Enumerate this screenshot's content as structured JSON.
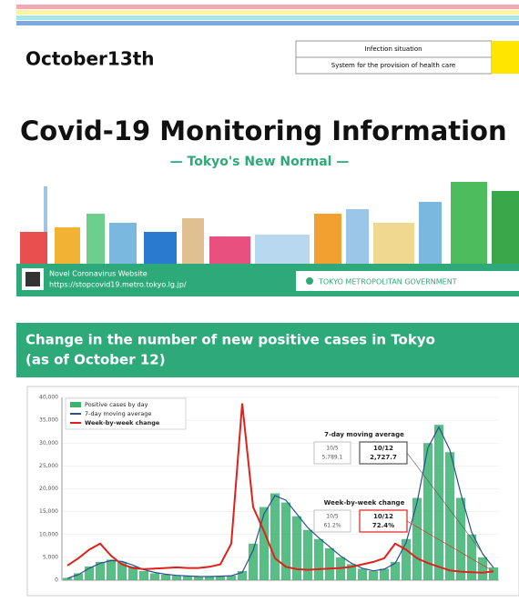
{
  "header": {
    "date": "October13th",
    "status_rows": [
      "Infection situation",
      "System for the provision of health care"
    ]
  },
  "banner": {
    "title": "Covid-19 Monitoring Information",
    "subtitle": "— Tokyo's New Normal —",
    "website_label": "Novel Coronavirus Website",
    "website_url": "https://stopcovid19.metro.tokyo.lg.jp/",
    "organization": "TOKYO METROPOLITAN GOVERNMENT"
  },
  "section": {
    "heading_lines": [
      "Change in the number of new positive cases in Tokyo",
      "(as of October 12)"
    ]
  },
  "chart_data": {
    "type": "combo",
    "categories": [
      null,
      null,
      null,
      null,
      null,
      null,
      null,
      null,
      null,
      null,
      null,
      null,
      null,
      null,
      null,
      null,
      null,
      null,
      null,
      null,
      null,
      null,
      null,
      null,
      null,
      null,
      null,
      null,
      null,
      null,
      null,
      null,
      null,
      null,
      null,
      null,
      null,
      null,
      null,
      null
    ],
    "series": [
      {
        "name": "Positive cases by day",
        "color": "#3cb371",
        "kind": "bar",
        "values": [
          500,
          1500,
          3000,
          4000,
          4500,
          4000,
          3000,
          2000,
          1500,
          1200,
          1000,
          900,
          800,
          800,
          900,
          1000,
          2000,
          8000,
          16000,
          19000,
          17000,
          14000,
          11000,
          9000,
          7000,
          5000,
          3500,
          2500,
          2000,
          2500,
          4000,
          9000,
          18000,
          30000,
          34000,
          28000,
          18000,
          10000,
          5000,
          2800
        ]
      },
      {
        "name": "7-day moving average",
        "color": "#2a4f8f",
        "kind": "line",
        "values": [
          400,
          1200,
          2600,
          3700,
          4300,
          4100,
          3300,
          2300,
          1700,
          1300,
          1050,
          920,
          820,
          800,
          870,
          980,
          1700,
          6500,
          14500,
          18500,
          17500,
          14500,
          11500,
          9300,
          7300,
          5300,
          3700,
          2600,
          2050,
          2400,
          3700,
          8200,
          17000,
          29000,
          33500,
          28500,
          19000,
          10500,
          5789.1,
          2727.7
        ]
      },
      {
        "name": "Week-by-week change",
        "color": "#e0201c",
        "kind": "line",
        "axis": "y2",
        "values": [
          120,
          180,
          250,
          300,
          200,
          130,
          100,
          90,
          95,
          100,
          105,
          100,
          100,
          110,
          130,
          300,
          1450,
          600,
          400,
          180,
          110,
          90,
          85,
          90,
          95,
          100,
          110,
          130,
          150,
          180,
          300,
          250,
          180,
          140,
          110,
          80,
          70,
          65,
          61.2,
          72.4
        ]
      }
    ],
    "ylim": [
      0,
      40000
    ],
    "yticks": [
      0,
      {
        "value": 5000,
        "label": "5,000"
      },
      {
        "value": 10000,
        "label": "10,000"
      },
      {
        "value": 15000,
        "label": "15,000"
      },
      {
        "value": 20000,
        "label": "20,000"
      },
      {
        "value": 25000,
        "label": "25,000"
      },
      {
        "value": 30000,
        "label": "30,000"
      },
      {
        "value": 35000,
        "label": "35,000"
      },
      {
        "value": 40000,
        "label": "40,000"
      }
    ],
    "y2lim": [
      0,
      1500
    ],
    "annotations": [
      {
        "title": "7-day moving average",
        "prev_date": "10/5",
        "prev_value": "5,789.1",
        "date": "10/12",
        "value": "2,727.7"
      },
      {
        "title": "Week-by-week change",
        "prev_date": "10/5",
        "prev_value": "61.2%",
        "date": "10/12",
        "value": "72.4%"
      }
    ],
    "grid": true,
    "legend": "upper left"
  }
}
